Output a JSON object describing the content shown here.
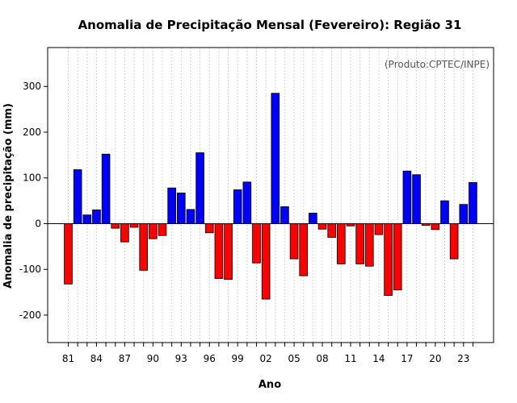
{
  "chart_data": {
    "type": "bar",
    "title": "Anomalia de Precipitação Mensal (Fevereiro): Região 31",
    "xlabel": "Ano",
    "ylabel": "Anomalia de precipitação (mm)",
    "credit": "(Produto:CPTEC/INPE)",
    "ylim": [
      -260,
      385
    ],
    "yticks": [
      -200,
      -100,
      0,
      100,
      200,
      300
    ],
    "ytick_labels": [
      "-200",
      "-100",
      "0",
      "100",
      "200",
      "300"
    ],
    "xtick_labels": [
      "81",
      "84",
      "87",
      "90",
      "93",
      "96",
      "99",
      "02",
      "05",
      "08",
      "11",
      "14",
      "17",
      "20",
      "23"
    ],
    "xtick_every": 3,
    "categories": [
      "81",
      "82",
      "83",
      "84",
      "85",
      "86",
      "87",
      "88",
      "89",
      "90",
      "91",
      "92",
      "93",
      "94",
      "95",
      "96",
      "97",
      "98",
      "99",
      "00",
      "01",
      "02",
      "03",
      "04",
      "05",
      "06",
      "07",
      "08",
      "09",
      "10",
      "11",
      "12",
      "13",
      "14",
      "15",
      "16",
      "17",
      "18",
      "19",
      "20",
      "21",
      "22",
      "23",
      "24"
    ],
    "values": [
      -132,
      118,
      19,
      30,
      152,
      -10,
      -40,
      -8,
      -102,
      -33,
      -26,
      78,
      67,
      31,
      155,
      -20,
      -120,
      -122,
      74,
      91,
      -86,
      -165,
      285,
      37,
      -77,
      -114,
      23,
      -12,
      -30,
      -88,
      -5,
      -88,
      -93,
      -24,
      -157,
      -145,
      115,
      107,
      -4,
      -13,
      50,
      -77,
      42,
      90
    ],
    "positive_color": "#0000ff",
    "negative_color": "#ff0000",
    "grid": true,
    "grid_color": "#d3d3d3"
  }
}
